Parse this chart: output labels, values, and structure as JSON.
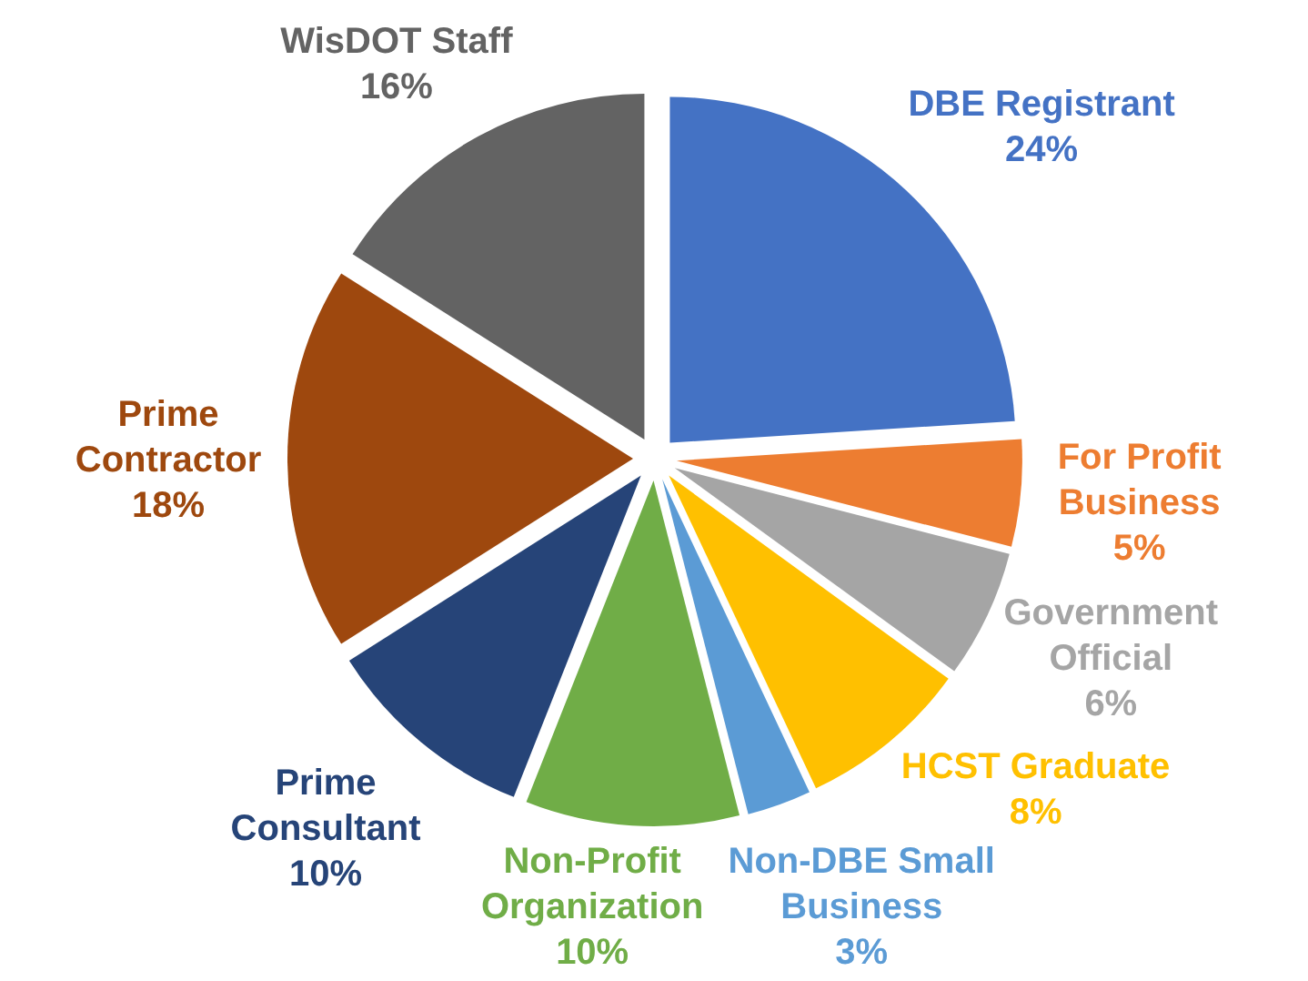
{
  "chart_data": {
    "type": "pie",
    "categories": [
      "DBE Registrant",
      "For Profit Business",
      "Government Official",
      "HCST Graduate",
      "Non-DBE Small Business",
      "Non-Profit Organization",
      "Prime Consultant",
      "Prime Contractor",
      "WisDOT Staff"
    ],
    "values": [
      24,
      5,
      6,
      8,
      3,
      10,
      10,
      18,
      16
    ],
    "value_labels": [
      "24%",
      "5%",
      "6%",
      "8%",
      "3%",
      "10%",
      "10%",
      "18%",
      "16%"
    ],
    "colors": [
      "#4472c4",
      "#ed7d31",
      "#a5a5a5",
      "#ffc000",
      "#5b9bd5",
      "#70ad47",
      "#264478",
      "#9e480e",
      "#636363"
    ]
  }
}
